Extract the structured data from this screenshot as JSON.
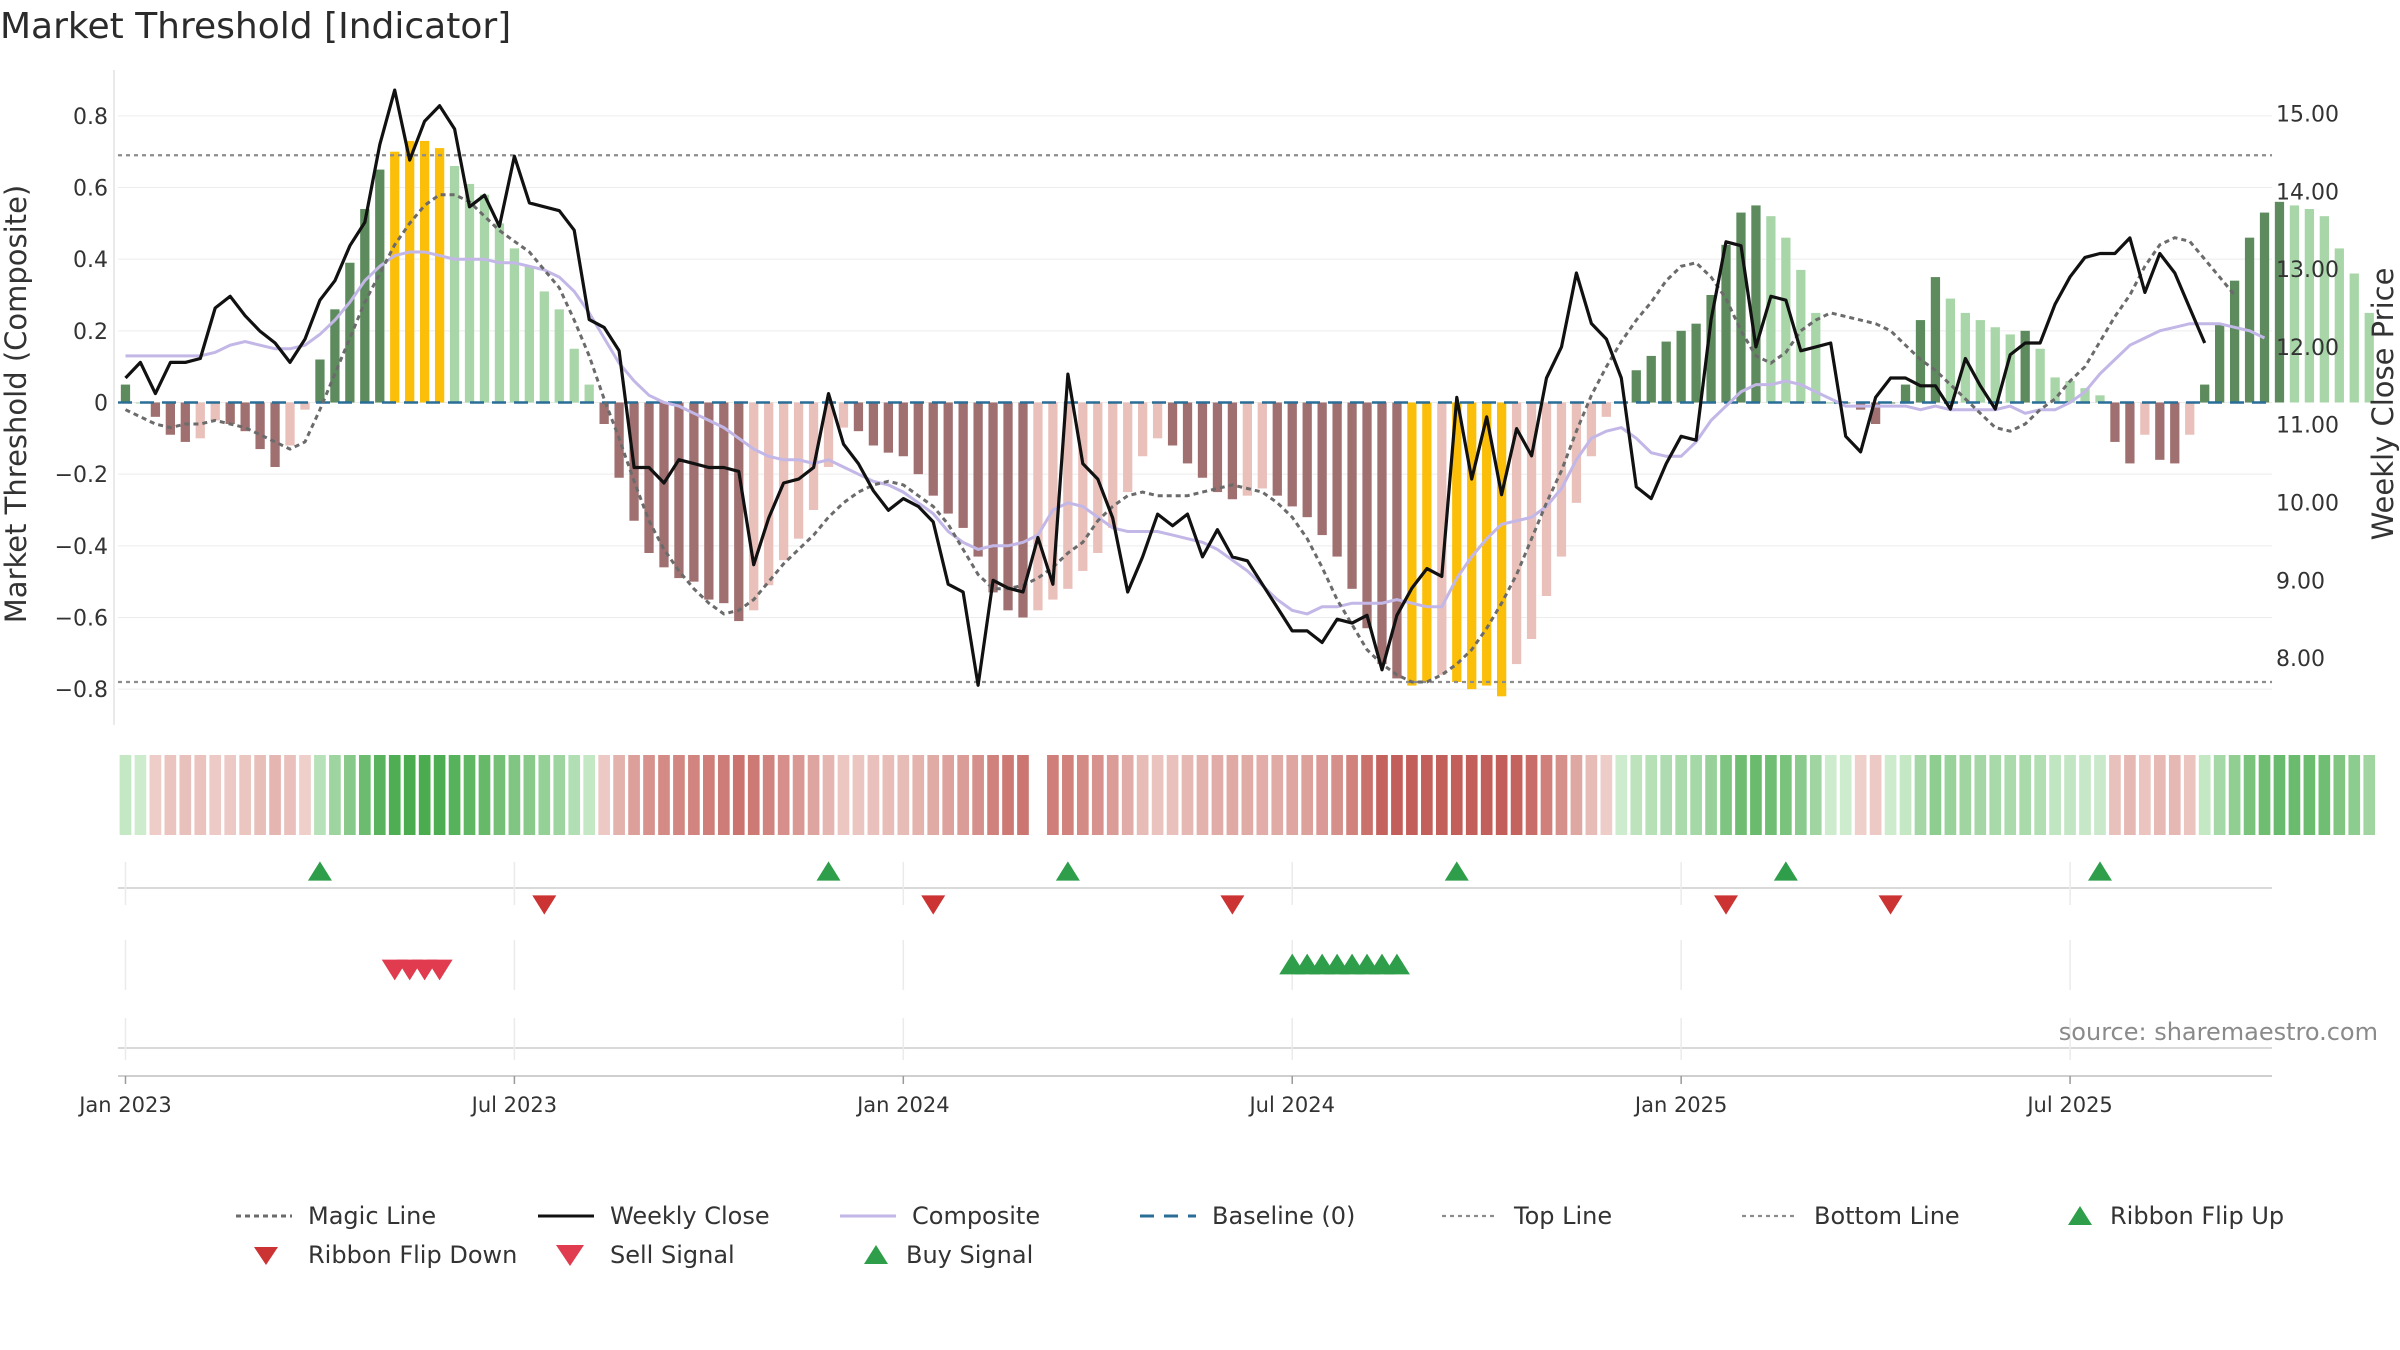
{
  "chart_data": {
    "type": "bar",
    "title": "Market Threshold [Indicator]",
    "source": "source: sharemaestro.com",
    "ylabel_left": "Market Threshold (Composite)",
    "ylabel_right": "Weekly Close Price",
    "ylim_left": [
      -0.9,
      0.9
    ],
    "ylim_right": [
      7.14,
      15.43
    ],
    "left_ticks": [
      "0.8",
      "0.6",
      "0.4",
      "0.2",
      "0",
      "−0.2",
      "−0.4",
      "−0.6",
      "−0.8"
    ],
    "left_tick_values": [
      0.8,
      0.6,
      0.4,
      0.2,
      0,
      -0.2,
      -0.4,
      -0.6,
      -0.8
    ],
    "right_ticks": [
      "15.00",
      "14.00",
      "13.00",
      "12.00",
      "11.00",
      "10.00",
      "9.00",
      "8.00"
    ],
    "right_tick_values": [
      15,
      14,
      13,
      12,
      11,
      10,
      9,
      8
    ],
    "x_ticks": [
      "Jan 2023",
      "Jul 2023",
      "Jan 2024",
      "Jul 2024",
      "Jan 2025",
      "Jul 2025"
    ],
    "x_tick_weeks": [
      0,
      26,
      52,
      78,
      104,
      130
    ],
    "top_line": 0.69,
    "bottom_line": -0.78,
    "baseline": 0,
    "week_count": 144,
    "composite_bars": [
      0.05,
      0.0,
      -0.04,
      -0.09,
      -0.11,
      -0.1,
      -0.05,
      -0.06,
      -0.08,
      -0.13,
      -0.18,
      -0.12,
      -0.02,
      0.12,
      0.26,
      0.39,
      0.54,
      0.65,
      0.7,
      0.73,
      0.73,
      0.71,
      0.66,
      0.61,
      0.58,
      0.5,
      0.43,
      0.38,
      0.31,
      0.26,
      0.15,
      0.05,
      -0.06,
      -0.21,
      -0.33,
      -0.42,
      -0.46,
      -0.49,
      -0.5,
      -0.55,
      -0.56,
      -0.61,
      -0.58,
      -0.51,
      -0.44,
      -0.38,
      -0.3,
      -0.18,
      -0.07,
      -0.08,
      -0.12,
      -0.14,
      -0.15,
      -0.2,
      -0.26,
      -0.31,
      -0.35,
      -0.43,
      -0.53,
      -0.58,
      -0.6,
      -0.58,
      -0.55,
      -0.52,
      -0.47,
      -0.42,
      -0.35,
      -0.25,
      -0.15,
      -0.1,
      -0.12,
      -0.17,
      -0.21,
      -0.25,
      -0.27,
      -0.26,
      -0.24,
      -0.26,
      -0.29,
      -0.32,
      -0.37,
      -0.43,
      -0.52,
      -0.63,
      -0.73,
      -0.77,
      -0.79,
      -0.78,
      -0.76,
      -0.78,
      -0.8,
      -0.79,
      -0.82,
      -0.73,
      -0.66,
      -0.54,
      -0.43,
      -0.28,
      -0.15,
      -0.04,
      0.0,
      0.09,
      0.13,
      0.17,
      0.2,
      0.22,
      0.3,
      0.44,
      0.53,
      0.55,
      0.52,
      0.46,
      0.37,
      0.25,
      0.0,
      0.0,
      -0.02,
      -0.06,
      0.0,
      0.05,
      0.23,
      0.35,
      0.29,
      0.25,
      0.23,
      0.21,
      0.19,
      0.2,
      0.15,
      0.07,
      0.06,
      0.04,
      0.02,
      -0.11,
      -0.17,
      -0.09,
      -0.16,
      -0.17,
      -0.09,
      0.05,
      0.22,
      0.34,
      0.46,
      0.53,
      0.56,
      0.55,
      0.54,
      0.52,
      0.43,
      0.36,
      0.25
    ],
    "weekly_close": [
      11.6,
      11.8,
      11.4,
      11.8,
      11.8,
      11.85,
      12.5,
      12.65,
      12.4,
      12.2,
      12.05,
      11.8,
      12.1,
      12.6,
      12.85,
      13.3,
      13.6,
      14.6,
      15.3,
      14.4,
      14.9,
      15.1,
      14.8,
      13.8,
      13.95,
      13.55,
      14.45,
      13.85,
      13.8,
      13.75,
      13.5,
      12.35,
      12.25,
      11.95,
      10.45,
      10.45,
      10.25,
      10.55,
      10.5,
      10.45,
      10.45,
      10.4,
      9.2,
      9.8,
      10.25,
      10.3,
      10.45,
      11.4,
      10.75,
      10.5,
      10.15,
      9.9,
      10.05,
      9.95,
      9.75,
      8.95,
      8.85,
      7.65,
      9.0,
      8.9,
      8.85,
      9.55,
      8.95,
      11.65,
      10.5,
      10.3,
      9.8,
      8.85,
      9.3,
      9.85,
      9.7,
      9.85,
      9.3,
      9.65,
      9.3,
      9.25,
      8.95,
      8.65,
      8.35,
      8.35,
      8.2,
      8.5,
      8.45,
      8.55,
      7.85,
      8.55,
      8.9,
      9.15,
      9.05,
      11.35,
      10.3,
      11.1,
      10.1,
      10.95,
      10.6,
      11.6,
      12.0,
      12.95,
      12.3,
      12.1,
      11.6,
      10.2,
      10.05,
      10.5,
      10.85,
      10.8,
      12.35,
      13.35,
      13.3,
      12.0,
      12.65,
      12.6,
      11.95,
      12.0,
      12.05,
      10.85,
      10.65,
      11.35,
      11.6,
      11.6,
      11.5,
      11.5,
      11.2,
      11.85,
      11.5,
      11.2,
      11.9,
      12.05,
      12.05,
      12.55,
      12.9,
      13.15,
      13.2,
      13.2,
      13.4,
      12.7,
      13.2,
      12.95,
      12.5,
      12.05
    ],
    "composite_line": [
      0.13,
      0.13,
      0.13,
      0.13,
      0.13,
      0.13,
      0.14,
      0.16,
      0.17,
      0.16,
      0.15,
      0.15,
      0.16,
      0.19,
      0.23,
      0.28,
      0.34,
      0.38,
      0.41,
      0.42,
      0.42,
      0.41,
      0.4,
      0.4,
      0.4,
      0.39,
      0.39,
      0.38,
      0.37,
      0.35,
      0.31,
      0.25,
      0.18,
      0.11,
      0.06,
      0.02,
      0.0,
      -0.01,
      -0.03,
      -0.05,
      -0.07,
      -0.1,
      -0.13,
      -0.15,
      -0.16,
      -0.16,
      -0.17,
      -0.16,
      -0.18,
      -0.2,
      -0.22,
      -0.23,
      -0.25,
      -0.28,
      -0.31,
      -0.36,
      -0.39,
      -0.41,
      -0.4,
      -0.4,
      -0.39,
      -0.37,
      -0.3,
      -0.28,
      -0.29,
      -0.32,
      -0.35,
      -0.36,
      -0.36,
      -0.36,
      -0.37,
      -0.38,
      -0.39,
      -0.41,
      -0.44,
      -0.47,
      -0.51,
      -0.55,
      -0.58,
      -0.59,
      -0.57,
      -0.57,
      -0.56,
      -0.56,
      -0.56,
      -0.55,
      -0.56,
      -0.57,
      -0.57,
      -0.49,
      -0.43,
      -0.38,
      -0.34,
      -0.33,
      -0.32,
      -0.29,
      -0.24,
      -0.16,
      -0.1,
      -0.08,
      -0.07,
      -0.1,
      -0.14,
      -0.15,
      -0.15,
      -0.11,
      -0.05,
      -0.01,
      0.03,
      0.05,
      0.05,
      0.06,
      0.05,
      0.03,
      0.01,
      -0.01,
      -0.01,
      -0.01,
      -0.01,
      -0.01,
      -0.02,
      -0.01,
      -0.02,
      -0.02,
      -0.02,
      -0.02,
      -0.01,
      -0.03,
      -0.02,
      -0.02,
      0.0,
      0.03,
      0.08,
      0.12,
      0.16,
      0.18,
      0.2,
      0.21,
      0.22,
      0.22,
      0.22,
      0.21,
      0.2,
      0.18
    ],
    "magic_line": [
      -0.02,
      -0.04,
      -0.06,
      -0.07,
      -0.06,
      -0.06,
      -0.05,
      -0.06,
      -0.07,
      -0.09,
      -0.11,
      -0.13,
      -0.11,
      -0.02,
      0.08,
      0.18,
      0.28,
      0.36,
      0.44,
      0.5,
      0.55,
      0.58,
      0.58,
      0.56,
      0.52,
      0.48,
      0.45,
      0.42,
      0.37,
      0.32,
      0.23,
      0.13,
      0.01,
      -0.1,
      -0.22,
      -0.33,
      -0.41,
      -0.47,
      -0.52,
      -0.56,
      -0.59,
      -0.58,
      -0.55,
      -0.5,
      -0.45,
      -0.41,
      -0.37,
      -0.32,
      -0.28,
      -0.25,
      -0.23,
      -0.22,
      -0.23,
      -0.26,
      -0.29,
      -0.34,
      -0.41,
      -0.48,
      -0.52,
      -0.52,
      -0.51,
      -0.49,
      -0.46,
      -0.42,
      -0.39,
      -0.33,
      -0.29,
      -0.26,
      -0.25,
      -0.26,
      -0.26,
      -0.26,
      -0.25,
      -0.24,
      -0.23,
      -0.24,
      -0.25,
      -0.28,
      -0.32,
      -0.38,
      -0.46,
      -0.55,
      -0.62,
      -0.69,
      -0.73,
      -0.76,
      -0.78,
      -0.78,
      -0.76,
      -0.73,
      -0.69,
      -0.63,
      -0.56,
      -0.48,
      -0.38,
      -0.28,
      -0.19,
      -0.08,
      0.02,
      0.1,
      0.17,
      0.23,
      0.28,
      0.34,
      0.38,
      0.39,
      0.35,
      0.29,
      0.2,
      0.13,
      0.11,
      0.14,
      0.2,
      0.23,
      0.25,
      0.24,
      0.23,
      0.22,
      0.2,
      0.16,
      0.12,
      0.09,
      0.05,
      0.01,
      -0.03,
      -0.07,
      -0.08,
      -0.06,
      -0.02,
      0.01,
      0.06,
      0.1,
      0.17,
      0.24,
      0.3,
      0.38,
      0.44,
      0.46,
      0.45,
      0.4,
      0.35,
      0.3
    ],
    "ribbon_flip_up_weeks": [
      13,
      47,
      63,
      89,
      111,
      132
    ],
    "ribbon_flip_down_weeks": [
      28,
      54,
      74,
      107,
      118
    ],
    "sell_signal_weeks": [
      18,
      19,
      20,
      21
    ],
    "buy_signal_weeks": [
      78,
      79,
      80,
      81,
      82,
      83,
      84,
      85
    ],
    "colors": {
      "green_dark": "#5d8b5d",
      "green_light": "#a9d6a9",
      "red_dark": "#a07070",
      "red_light": "#eac0bb",
      "extreme": "#fbbf0a",
      "weekly_close": "#111111",
      "composite": "#c2b7e6",
      "magic": "#6b6b6b",
      "baseline": "#2a6d96",
      "guide": "#8c8c8c",
      "flip_up": "#2e9e4a",
      "flip_down": "#cc3333",
      "sell": "#e03b4e",
      "buy": "#2e9e4a"
    },
    "legend": [
      {
        "label": "Magic Line",
        "style": "dotted-dark"
      },
      {
        "label": "Weekly Close",
        "style": "solid-black"
      },
      {
        "label": "Composite",
        "style": "solid-lavender"
      },
      {
        "label": "Baseline (0)",
        "style": "dashed-blue"
      },
      {
        "label": "Top Line",
        "style": "dotted-grey"
      },
      {
        "label": "Bottom Line",
        "style": "dotted-grey"
      },
      {
        "label": "Ribbon Flip Up",
        "style": "triangle-up-green"
      },
      {
        "label": "Ribbon Flip Down",
        "style": "triangle-down-red"
      },
      {
        "label": "Sell Signal",
        "style": "triangle-down-pink"
      },
      {
        "label": "Buy Signal",
        "style": "triangle-up-green"
      }
    ]
  }
}
